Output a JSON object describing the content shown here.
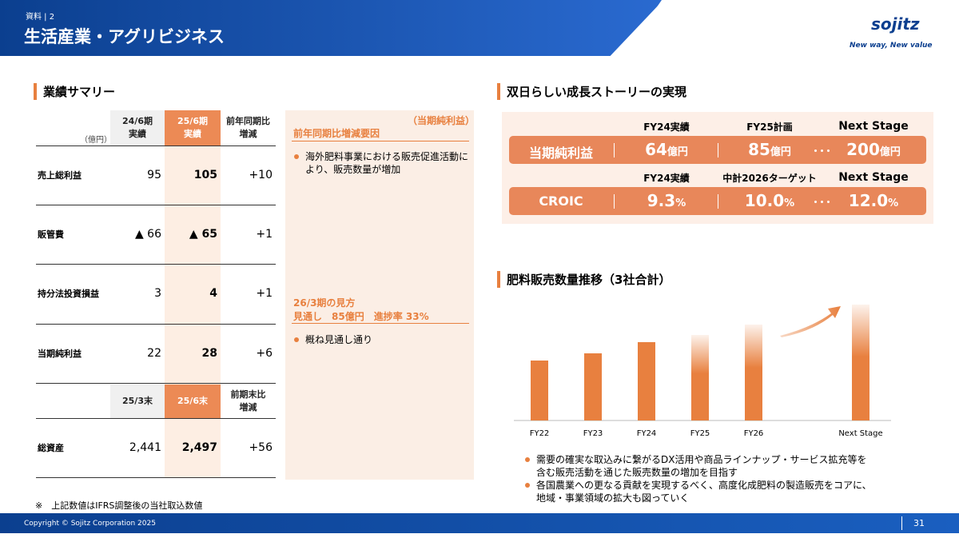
{
  "header": {
    "label": "資料",
    "page_ref": "2",
    "title": "生活産業・アグリビジネス",
    "logo": "sojitz",
    "tagline": "New way, New value"
  },
  "summary": {
    "title": "業績サマリー",
    "unit": "（億円）",
    "columns": [
      "24/6期\n実績",
      "25/6期\n実績",
      "前年同期比\n増減"
    ],
    "rows": [
      [
        "売上総利益",
        "95",
        "105",
        "+10"
      ],
      [
        "販管費",
        "▲ 66",
        "▲ 65",
        "+1"
      ],
      [
        "持分法投資損益",
        "3",
        "4",
        "+1"
      ],
      [
        "当期純利益",
        "22",
        "28",
        "+6"
      ]
    ],
    "balance_columns": [
      "25/3末",
      "25/6末",
      "前期末比\n増減"
    ],
    "balance_rows": [
      [
        "総資産",
        "2,441",
        "2,497",
        "+56"
      ]
    ],
    "footnote": "※　上記数値はIFRS調整後の当社取込数値"
  },
  "notes": {
    "tag": "（当期純利益）",
    "heading": "前年同期比増減要因",
    "bullets": [
      "海外肥料事業における販売促進活動により、販売数量が増加"
    ],
    "outlook_heading": "26/3期の見方",
    "outlook_line": "見通し　85億円　進捗率 33%",
    "outlook_bullets": [
      "概ね見通し通り"
    ]
  },
  "growth": {
    "title": "双日らしい成長ストーリーの実現",
    "rows": [
      {
        "headers": [
          "FY24実績",
          "FY25計画",
          "Next Stage"
        ],
        "label": "当期純利益",
        "cells": [
          {
            "value": "64",
            "unit": "億円"
          },
          {
            "value": "85",
            "unit": "億円"
          },
          {
            "value": "200",
            "unit": "億円"
          }
        ]
      },
      {
        "headers": [
          "FY24実績",
          "中計2026ターゲット",
          "Next Stage"
        ],
        "label": "CROIC",
        "cells": [
          {
            "value": "9.3",
            "unit": "%"
          },
          {
            "value": "10.0",
            "unit": "%"
          },
          {
            "value": "12.0",
            "unit": "%"
          }
        ]
      }
    ]
  },
  "chart_data": {
    "type": "bar",
    "title": "肥料販売数量推移（3社合計）",
    "categories": [
      "FY22",
      "FY23",
      "FY24",
      "FY25",
      "FY26",
      "Next Stage"
    ],
    "values": [
      75,
      84,
      98,
      107,
      120,
      145
    ],
    "color": "#e8803f",
    "ylim": [
      0,
      150
    ]
  },
  "chart_notes": [
    "需要の確実な取込みに繋がるDX活用や商品ラインナップ・サービス拡充等を含む販売活動を通じた販売数量の増加を目指す",
    "各国農業への更なる貢献を実現するべく、高度化成肥料の製造販売をコアに、地域・事業領域の拡大も図っていく"
  ],
  "footer": {
    "copyright": "Copyright © Sojitz Corporation 2025",
    "page": "31"
  }
}
